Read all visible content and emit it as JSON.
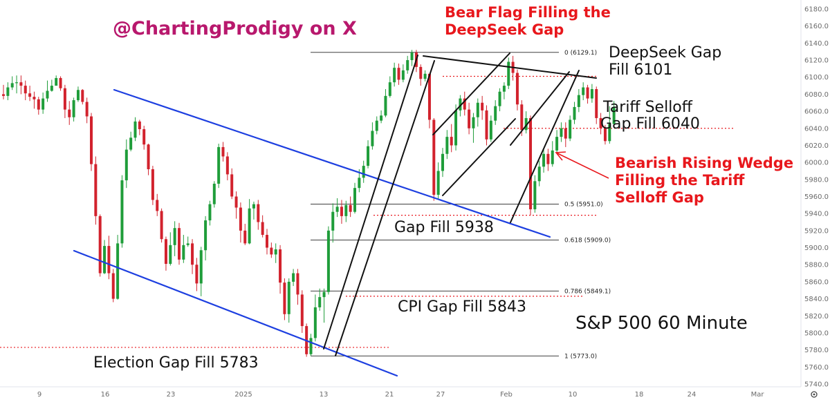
{
  "chart_data": {
    "type": "candlestick",
    "title": "S&P 500 60 Minute",
    "handle": "@ChartingProdigy on X",
    "y_axis": {
      "ticks": [
        5740,
        5760,
        5780,
        5800,
        5820,
        5840,
        5860,
        5880,
        5900,
        5920,
        5940,
        5960,
        5980,
        6000,
        6020,
        6040,
        6060,
        6080,
        6100,
        6120,
        6140,
        6160,
        6180
      ],
      "labels": [
        "5740.0",
        "5760.0",
        "5780.0",
        "5800.0",
        "5820.0",
        "5840.0",
        "5860.0",
        "5880.0",
        "5900.0",
        "5920.0",
        "5940.0",
        "5960.0",
        "5980.0",
        "6000.0",
        "6020.0",
        "6040.0",
        "6060.0",
        "6080.0",
        "6100.0",
        "6120.0",
        "6140.0",
        "6160.0",
        "6180.0"
      ],
      "range": [
        5734,
        6190
      ]
    },
    "x_axis": {
      "labels": [
        "9",
        "16",
        "23",
        "2025",
        "13",
        "21",
        "27",
        "Feb",
        "10",
        "18",
        "24",
        "Mar"
      ]
    },
    "fib_levels": [
      {
        "ratio": "0",
        "price": 6129.1,
        "label": "0 (6129.1)"
      },
      {
        "ratio": "0.5",
        "price": 5951.0,
        "label": "0.5 (5951.0)"
      },
      {
        "ratio": "0.618",
        "price": 5909.0,
        "label": "0.618 (5909.0)"
      },
      {
        "ratio": "0.786",
        "price": 5849.1,
        "label": "0.786 (5849.1)"
      },
      {
        "ratio": "1",
        "price": 5773.0,
        "label": "1 (5773.0)"
      }
    ],
    "gap_levels": [
      {
        "name": "DeepSeek Gap Fill",
        "price": 6101
      },
      {
        "name": "Tariff Selloff Gap Fill",
        "price": 6040
      },
      {
        "name": "Gap Fill",
        "price": 5938
      },
      {
        "name": "CPI Gap Fill",
        "price": 5843
      },
      {
        "name": "Election Gap Fill",
        "price": 5783
      }
    ],
    "annotations": {
      "bear_flag_1": "Bear Flag Filling the",
      "bear_flag_2": "DeepSeek Gap",
      "deepseek_1": "DeepSeek Gap",
      "deepseek_2": "Fill 6101",
      "tariff_1": "Tariff Selloff",
      "tariff_2": "Gap Fill 6040",
      "wedge_1": "Bearish Rising Wedge",
      "wedge_2": "Filling the Tariff",
      "wedge_3": "Selloff Gap",
      "gap5938": "Gap Fill 5938",
      "cpi": "CPI Gap Fill 5843",
      "election": "Election Gap Fill 5783"
    },
    "trendlines": [
      {
        "name": "upper-channel",
        "from": [
          5,
          6087
        ],
        "to": [
          48,
          5911
        ]
      },
      {
        "name": "lower-channel",
        "from": [
          -3,
          5984
        ],
        "to": [
          30,
          5752
        ]
      },
      {
        "name": "bear-flag-top",
        "from": [
          29,
          6134
        ],
        "to": [
          61,
          6103
        ]
      },
      {
        "name": "rising-channel-outer",
        "from": [
          19,
          5768
        ],
        "to": [
          37,
          6133
        ]
      },
      {
        "name": "rising-channel-inner",
        "from": [
          22,
          5810
        ],
        "to": [
          40,
          6124
        ]
      }
    ],
    "candles": [
      [
        6080,
        6078,
        6091,
        6074
      ],
      [
        6078,
        6088,
        6094,
        6073
      ],
      [
        6088,
        6093,
        6101,
        6085
      ],
      [
        6093,
        6094,
        6102,
        6081
      ],
      [
        6094,
        6090,
        6102,
        6080
      ],
      [
        6090,
        6081,
        6096,
        6073
      ],
      [
        6081,
        6077,
        6090,
        6072
      ],
      [
        6077,
        6074,
        6083,
        6063
      ],
      [
        6074,
        6062,
        6077,
        6056
      ],
      [
        6062,
        6075,
        6082,
        6057
      ],
      [
        6075,
        6084,
        6096,
        6071
      ],
      [
        6084,
        6090,
        6097,
        6083
      ],
      [
        6090,
        6099,
        6102,
        6090
      ],
      [
        6099,
        6087,
        6101,
        6084
      ],
      [
        6087,
        6062,
        6091,
        6052
      ],
      [
        6062,
        6053,
        6072,
        6044
      ],
      [
        6053,
        6073,
        6076,
        6048
      ],
      [
        6073,
        6085,
        6089,
        6071
      ],
      [
        6085,
        6071,
        6086,
        6068
      ],
      [
        6071,
        6054,
        6076,
        6046
      ],
      [
        6054,
        5998,
        6058,
        5990
      ],
      [
        5998,
        5937,
        6007,
        5927
      ],
      [
        5937,
        5870,
        5939,
        5866
      ],
      [
        5870,
        5902,
        5909,
        5869
      ],
      [
        5902,
        5870,
        5914,
        5863
      ],
      [
        5870,
        5840,
        5875,
        5836
      ],
      [
        5840,
        5905,
        5915,
        5839
      ],
      [
        5905,
        5979,
        5985,
        5900
      ],
      [
        5979,
        6015,
        6027,
        5970
      ],
      [
        6015,
        6029,
        6036,
        6013
      ],
      [
        6029,
        6048,
        6053,
        6025
      ],
      [
        6048,
        6039,
        6050,
        6032
      ],
      [
        6039,
        6021,
        6043,
        6015
      ],
      [
        6021,
        5992,
        6022,
        5985
      ],
      [
        5992,
        5956,
        5996,
        5950
      ],
      [
        5956,
        5943,
        5963,
        5937
      ],
      [
        5943,
        5910,
        5946,
        5906
      ],
      [
        5910,
        5881,
        5913,
        5873
      ],
      [
        5881,
        5903,
        5918,
        5879
      ],
      [
        5903,
        5923,
        5931,
        5890
      ],
      [
        5923,
        5886,
        5929,
        5880
      ],
      [
        5886,
        5903,
        5915,
        5882
      ],
      [
        5903,
        5905,
        5913,
        5901
      ],
      [
        5905,
        5880,
        5910,
        5869
      ],
      [
        5880,
        5858,
        5888,
        5849
      ],
      [
        5858,
        5897,
        5901,
        5843
      ],
      [
        5897,
        5932,
        5937,
        5885
      ],
      [
        5932,
        5951,
        5955,
        5926
      ],
      [
        5951,
        5975,
        5978,
        5947
      ],
      [
        5975,
        6018,
        6022,
        5970
      ],
      [
        6018,
        6007,
        6024,
        6001
      ],
      [
        6007,
        5986,
        6012,
        5979
      ],
      [
        5986,
        5960,
        5993,
        5957
      ],
      [
        5960,
        5947,
        5966,
        5934
      ],
      [
        5947,
        5920,
        5953,
        5906
      ],
      [
        5920,
        5905,
        5928,
        5903
      ],
      [
        5905,
        5946,
        5957,
        5904
      ],
      [
        5946,
        5951,
        5954,
        5933
      ],
      [
        5951,
        5930,
        5956,
        5921
      ],
      [
        5930,
        5915,
        5938,
        5912
      ],
      [
        5915,
        5900,
        5922,
        5892
      ],
      [
        5900,
        5892,
        5906,
        5888
      ],
      [
        5892,
        5898,
        5905,
        5882
      ],
      [
        5898,
        5859,
        5903,
        5846
      ],
      [
        5859,
        5822,
        5864,
        5815
      ],
      [
        5822,
        5860,
        5864,
        5812
      ],
      [
        5860,
        5870,
        5875,
        5855
      ],
      [
        5870,
        5845,
        5875,
        5833
      ],
      [
        5845,
        5808,
        5850,
        5800
      ],
      [
        5808,
        5775,
        5811,
        5772
      ],
      [
        5775,
        5794,
        5799,
        5773
      ],
      [
        5794,
        5830,
        5845,
        5790
      ],
      [
        5830,
        5842,
        5852,
        5826
      ],
      [
        5842,
        5848,
        5852,
        5812
      ],
      [
        5848,
        5920,
        5925,
        5845
      ],
      [
        5920,
        5942,
        5952,
        5906
      ],
      [
        5942,
        5948,
        5958,
        5936
      ],
      [
        5948,
        5937,
        5956,
        5928
      ],
      [
        5937,
        5950,
        5955,
        5930
      ],
      [
        5950,
        5942,
        5960,
        5936
      ],
      [
        5942,
        5970,
        5976,
        5940
      ],
      [
        5970,
        5982,
        5992,
        5965
      ],
      [
        5982,
        5996,
        6002,
        5976
      ],
      [
        5996,
        6019,
        6026,
        5993
      ],
      [
        6019,
        6037,
        6047,
        6015
      ],
      [
        6037,
        6049,
        6054,
        6033
      ],
      [
        6049,
        6055,
        6061,
        6046
      ],
      [
        6055,
        6078,
        6086,
        6053
      ],
      [
        6078,
        6094,
        6101,
        6076
      ],
      [
        6094,
        6111,
        6117,
        6089
      ],
      [
        6111,
        6097,
        6116,
        6091
      ],
      [
        6097,
        6108,
        6115,
        6094
      ],
      [
        6108,
        6120,
        6125,
        6104
      ],
      [
        6120,
        6129,
        6132,
        6113
      ],
      [
        6129,
        6112,
        6132,
        6106
      ],
      [
        6112,
        6098,
        6115,
        6090
      ],
      [
        6098,
        6104,
        6108,
        6095
      ],
      [
        6104,
        6050,
        6104,
        6040
      ],
      [
        6050,
        5962,
        6052,
        5955
      ],
      [
        5962,
        5990,
        6000,
        5956
      ],
      [
        5990,
        6010,
        6017,
        5983
      ],
      [
        6010,
        6030,
        6038,
        6004
      ],
      [
        6030,
        6020,
        6045,
        6012
      ],
      [
        6020,
        6061,
        6068,
        6014
      ],
      [
        6061,
        6075,
        6079,
        6054
      ],
      [
        6075,
        6062,
        6083,
        6055
      ],
      [
        6062,
        6040,
        6070,
        6033
      ],
      [
        6040,
        6053,
        6058,
        6023
      ],
      [
        6053,
        6070,
        6075,
        6042
      ],
      [
        6070,
        6061,
        6078,
        6050
      ],
      [
        6061,
        6027,
        6067,
        6020
      ],
      [
        6027,
        6049,
        6055,
        6024
      ],
      [
        6049,
        6066,
        6073,
        6044
      ],
      [
        6066,
        6083,
        6087,
        6060
      ],
      [
        6083,
        6090,
        6094,
        6074
      ],
      [
        6090,
        6118,
        6123,
        6086
      ],
      [
        6118,
        6105,
        6125,
        6096
      ],
      [
        6105,
        6068,
        6109,
        6061
      ],
      [
        6068,
        6038,
        6073,
        6031
      ],
      [
        6038,
        6052,
        6060,
        6034
      ],
      [
        6052,
        5945,
        6055,
        5938
      ],
      [
        5945,
        5978,
        5985,
        5941
      ],
      [
        5978,
        5995,
        6002,
        5972
      ],
      [
        5995,
        6010,
        6016,
        5988
      ],
      [
        6010,
        5998,
        6016,
        5990
      ],
      [
        5998,
        6014,
        6025,
        5995
      ],
      [
        6014,
        6030,
        6038,
        6010
      ],
      [
        6030,
        6040,
        6047,
        6024
      ],
      [
        6040,
        6028,
        6047,
        6018
      ],
      [
        6028,
        6050,
        6055,
        6025
      ],
      [
        6050,
        6065,
        6071,
        6045
      ],
      [
        6065,
        6079,
        6086,
        6059
      ],
      [
        6079,
        6088,
        6094,
        6073
      ],
      [
        6088,
        6075,
        6091,
        6069
      ],
      [
        6075,
        6086,
        6092,
        6070
      ],
      [
        6086,
        6052,
        6089,
        6045
      ],
      [
        6052,
        6040,
        6058,
        6033
      ],
      [
        6040,
        6025,
        6044,
        6021
      ],
      [
        6025,
        6045,
        6066,
        6022
      ],
      [
        6045,
        6064,
        6072,
        6055
      ]
    ]
  }
}
